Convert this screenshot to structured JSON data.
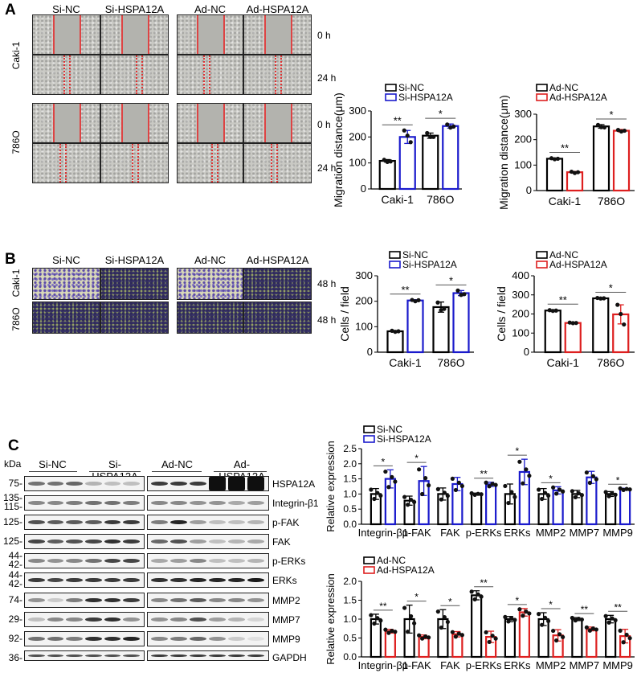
{
  "panels": {
    "a": "A",
    "b": "B",
    "c": "C"
  },
  "groups": [
    "Si-NC",
    "Si-HSPA12A",
    "Ad-NC",
    "Ad-HSPA12A"
  ],
  "cell_lines": [
    "Caki-1",
    "786O"
  ],
  "timepoints_a": [
    "0 h",
    "24 h",
    "0 h",
    "24 h"
  ],
  "timepoints_b": [
    "48 h",
    "48 h"
  ],
  "blot": {
    "kda_header": "kDa",
    "rows": [
      {
        "name": "HSPA12A",
        "kda": [
          "75"
        ],
        "intensity": [
          0.55,
          0.55,
          0.6,
          0.25,
          0.2,
          0.2,
          0.8,
          0.8,
          0.8,
          1,
          1,
          1
        ]
      },
      {
        "name": "Integrin-β1",
        "kda": [
          "135",
          "115"
        ],
        "intensity": [
          0.45,
          0.45,
          0.5,
          0.55,
          0.55,
          0.5,
          0.45,
          0.45,
          0.4,
          0.4,
          0.3,
          0.35
        ]
      },
      {
        "name": "p-FAK",
        "kda": [
          "125"
        ],
        "intensity": [
          0.7,
          0.65,
          0.65,
          0.65,
          0.8,
          0.8,
          0.5,
          0.9,
          0.35,
          0.2,
          0.2,
          0.25
        ]
      },
      {
        "name": "FAK",
        "kda": [
          "125"
        ],
        "intensity": [
          0.75,
          0.65,
          0.7,
          0.75,
          0.85,
          0.8,
          0.6,
          0.7,
          0.35,
          0.2,
          0.25,
          0.3
        ]
      },
      {
        "name": "p-ERKs",
        "kda": [
          "44",
          "42"
        ],
        "intensity": [
          0.45,
          0.4,
          0.45,
          0.55,
          0.75,
          0.75,
          0.3,
          0.35,
          0.45,
          0.2,
          0.2,
          0.25
        ]
      },
      {
        "name": "ERKs",
        "kda": [
          "44",
          "42"
        ],
        "intensity": [
          0.8,
          0.75,
          0.8,
          0.8,
          0.8,
          0.8,
          0.85,
          0.85,
          0.9,
          0.9,
          0.9,
          0.95
        ]
      },
      {
        "name": "MMP2",
        "kda": [
          "74"
        ],
        "intensity": [
          0.4,
          0.15,
          0.5,
          0.85,
          0.85,
          0.8,
          0.45,
          0.55,
          0.65,
          0.45,
          0.45,
          0.4
        ]
      },
      {
        "name": "MMP7",
        "kda": [
          "29"
        ],
        "intensity": [
          0.2,
          0.45,
          0.45,
          0.8,
          0.85,
          0.4,
          0.4,
          0.45,
          0.7,
          0.35,
          0.25,
          0.1
        ]
      },
      {
        "name": "MMP9",
        "kda": [
          "92"
        ],
        "intensity": [
          0.55,
          0.55,
          0.5,
          0.85,
          0.85,
          0.9,
          0.45,
          0.5,
          0.6,
          0.4,
          0.15,
          0.05
        ]
      },
      {
        "name": "GAPDH",
        "kda": [
          "36"
        ],
        "intensity": [
          0.7,
          0.7,
          0.7,
          0.7,
          0.7,
          0.7,
          0.8,
          0.8,
          0.8,
          0.8,
          0.8,
          0.8
        ]
      }
    ]
  },
  "colors": {
    "nc": "#000000",
    "si": "#1a1acc",
    "ad": "#dd1f1f"
  },
  "chart_data": [
    {
      "id": "a-si",
      "type": "bar",
      "ylabel": "Migration distance(μm)",
      "ylim": [
        0,
        300
      ],
      "yticks": [
        0,
        100,
        200,
        300
      ],
      "categories": [
        "Caki-1",
        "786O"
      ],
      "series": [
        {
          "name": "Si-NC",
          "color": "#000000",
          "values": [
            108,
            205
          ],
          "sd": [
            5,
            10
          ],
          "points": [
            [
              112,
              104,
              106
            ],
            [
              215,
              200,
              200
            ]
          ]
        },
        {
          "name": "Si-HSPA12A",
          "color": "#1a1acc",
          "values": [
            200,
            242
          ],
          "sd": [
            25,
            8
          ],
          "points": [
            [
              225,
              205,
              180
            ],
            [
              248,
              236,
              240
            ]
          ]
        }
      ],
      "significance": [
        "**",
        "*"
      ]
    },
    {
      "id": "a-ad",
      "type": "bar",
      "ylabel": "Migration distance(μm)",
      "ylim": [
        0,
        300
      ],
      "yticks": [
        0,
        100,
        200,
        300
      ],
      "categories": [
        "Caki-1",
        "786O"
      ],
      "series": [
        {
          "name": "Ad-NC",
          "color": "#000000",
          "values": [
            125,
            252
          ],
          "sd": [
            3,
            7
          ],
          "points": [
            [
              127,
              123,
              125
            ],
            [
              258,
              249,
              248
            ]
          ]
        },
        {
          "name": "Ad-HSPA12A",
          "color": "#dd1f1f",
          "values": [
            72,
            235
          ],
          "sd": [
            3,
            5
          ],
          "points": [
            [
              74,
              69,
              72
            ],
            [
              238,
              232,
              235
            ]
          ]
        }
      ],
      "significance": [
        "**",
        "*"
      ]
    },
    {
      "id": "b-si",
      "type": "bar",
      "ylabel": "Cells / field",
      "ylim": [
        0,
        300
      ],
      "yticks": [
        0,
        100,
        200,
        300
      ],
      "categories": [
        "Caki-1",
        "786O"
      ],
      "series": [
        {
          "name": "Si-NC",
          "color": "#000000",
          "values": [
            82,
            177
          ],
          "sd": [
            3,
            20
          ],
          "points": [
            [
              84,
              80,
              82
            ],
            [
              195,
              165,
              170
            ]
          ]
        },
        {
          "name": "Si-HSPA12A",
          "color": "#1a1acc",
          "values": [
            203,
            232
          ],
          "sd": [
            3,
            10
          ],
          "points": [
            [
              205,
              200,
              204
            ],
            [
              242,
              225,
              228
            ]
          ]
        }
      ],
      "significance": [
        "**",
        "*"
      ]
    },
    {
      "id": "b-ad",
      "type": "bar",
      "ylabel": "Cells / field",
      "ylim": [
        0,
        400
      ],
      "yticks": [
        0,
        100,
        200,
        300,
        400
      ],
      "categories": [
        "Caki-1",
        "786O"
      ],
      "series": [
        {
          "name": "Ad-NC",
          "color": "#000000",
          "values": [
            218,
            282
          ],
          "sd": [
            4,
            2
          ],
          "points": [
            [
              220,
              216,
              218
            ],
            [
              284,
              281,
              282
            ]
          ]
        },
        {
          "name": "Ad-HSPA12A",
          "color": "#dd1f1f",
          "values": [
            153,
            198
          ],
          "sd": [
            2,
            50
          ],
          "points": [
            [
              155,
              152,
              153
            ],
            [
              248,
              200,
              145
            ]
          ]
        }
      ],
      "significance": [
        "**",
        "*"
      ]
    },
    {
      "id": "c-si",
      "type": "bar",
      "ylabel": "Relative expression",
      "ylim": [
        0,
        2.5
      ],
      "yticks": [
        "0.0",
        "0.5",
        "1.0",
        "1.5",
        "2.0",
        "2.5"
      ],
      "categories": [
        "Integrin-β1",
        "p-FAK",
        "FAK",
        "p-ERKs",
        "ERKs",
        "MMP2",
        "MMP7",
        "MMP9"
      ],
      "series": [
        {
          "name": "Si-NC",
          "color": "#000000",
          "values": [
            1.0,
            0.78,
            1.0,
            1.0,
            1.0,
            1.0,
            1.0,
            1.0
          ],
          "sd": [
            0.18,
            0.15,
            0.2,
            0.03,
            0.33,
            0.18,
            0.12,
            0.08
          ]
        },
        {
          "name": "Si-HSPA12A",
          "color": "#1a1acc",
          "values": [
            1.5,
            1.43,
            1.33,
            1.32,
            1.73,
            1.12,
            1.55,
            1.16
          ],
          "sd": [
            0.3,
            0.48,
            0.22,
            0.07,
            0.42,
            0.12,
            0.2,
            0.03
          ]
        }
      ],
      "significance": [
        "*",
        "*",
        "",
        "**",
        "*",
        "*",
        "",
        "*"
      ]
    },
    {
      "id": "c-ad",
      "type": "bar",
      "ylabel": "Relative expression",
      "ylim": [
        0,
        2.0
      ],
      "yticks": [
        "0.0",
        "0.5",
        "1.0",
        "1.5",
        "2.0"
      ],
      "categories": [
        "Integrin-β1",
        "p-FAK",
        "FAK",
        "p-ERKs",
        "ERKs",
        "MMP2",
        "MMP7",
        "MMP9"
      ],
      "series": [
        {
          "name": "Ad-NC",
          "color": "#000000",
          "values": [
            1.0,
            1.0,
            1.0,
            1.63,
            1.0,
            1.0,
            1.0,
            1.0
          ],
          "sd": [
            0.13,
            0.37,
            0.25,
            0.12,
            0.07,
            0.17,
            0.04,
            0.1
          ]
        },
        {
          "name": "Ad-HSPA12A",
          "color": "#dd1f1f",
          "values": [
            0.68,
            0.53,
            0.6,
            0.53,
            1.18,
            0.57,
            0.74,
            0.55
          ],
          "sd": [
            0.05,
            0.05,
            0.07,
            0.15,
            0.1,
            0.15,
            0.05,
            0.18
          ]
        }
      ],
      "significance": [
        "**",
        "*",
        "*",
        "**",
        "*",
        "*",
        "**",
        "**"
      ]
    }
  ]
}
